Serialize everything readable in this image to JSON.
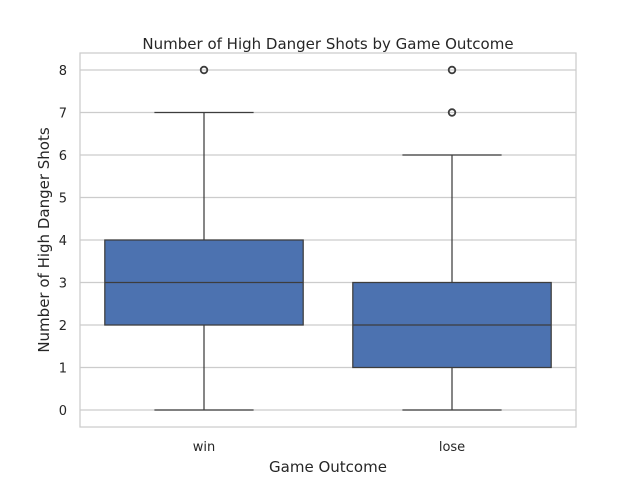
{
  "chart_data": {
    "type": "box",
    "title": "Number of High Danger Shots by Game Outcome",
    "xlabel": "Game Outcome",
    "ylabel": "Number of High Danger Shots",
    "categories": [
      "win",
      "lose"
    ],
    "y_ticks": [
      "0",
      "1",
      "2",
      "3",
      "4",
      "5",
      "6",
      "7",
      "8"
    ],
    "ylim": [
      -0.4,
      8.4
    ],
    "grid": "horizontal",
    "box_color": "#4c72b0",
    "line_color": "#3d3d3d",
    "grid_color": "#cccccc",
    "boxes": [
      {
        "category": "win",
        "whisker_low": 0,
        "q1": 2,
        "median": 3,
        "q3": 4,
        "whisker_high": 7,
        "outliers": [
          8
        ]
      },
      {
        "category": "lose",
        "whisker_low": 0,
        "q1": 1,
        "median": 2,
        "q3": 3,
        "whisker_high": 6,
        "outliers": [
          7,
          8
        ]
      }
    ]
  }
}
